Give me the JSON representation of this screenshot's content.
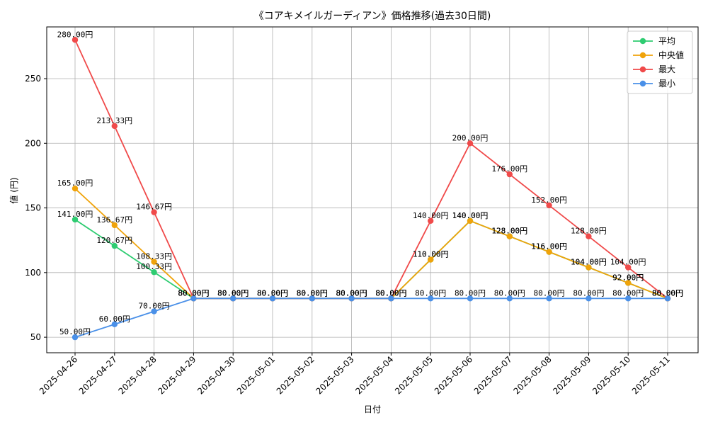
{
  "chart_data": {
    "type": "line",
    "title": "《コアキメイルガーディアン》価格推移(過去30日間)",
    "xlabel": "日付",
    "ylabel": "値 (円)",
    "categories": [
      "2025-04-26",
      "2025-04-27",
      "2025-04-28",
      "2025-04-29",
      "2025-04-30",
      "2025-05-01",
      "2025-05-02",
      "2025-05-03",
      "2025-05-04",
      "2025-05-05",
      "2025-05-06",
      "2025-05-07",
      "2025-05-08",
      "2025-05-09",
      "2025-05-10",
      "2025-05-11"
    ],
    "ylim": [
      38,
      290
    ],
    "yticks": [
      50,
      100,
      150,
      200,
      250
    ],
    "grid": true,
    "legend_position": "top-right",
    "series": [
      {
        "name": "平均",
        "color": "#2ecc71",
        "values": [
          141,
          120.67,
          100.33,
          80,
          80,
          80,
          80,
          80,
          80,
          110,
          140,
          128,
          116,
          104,
          92,
          80
        ]
      },
      {
        "name": "中央値",
        "color": "#f0a30a",
        "values": [
          165,
          136.67,
          108.33,
          80,
          80,
          80,
          80,
          80,
          80,
          110,
          140,
          128,
          116,
          104,
          92,
          80
        ]
      },
      {
        "name": "最大",
        "color": "#f04a4a",
        "values": [
          280,
          213.33,
          146.67,
          80,
          80,
          80,
          80,
          80,
          80,
          140,
          200,
          176,
          152,
          128,
          104,
          80
        ]
      },
      {
        "name": "最小",
        "color": "#4a90e8",
        "values": [
          50,
          60,
          70,
          80,
          80,
          80,
          80,
          80,
          80,
          80,
          80,
          80,
          80,
          80,
          80,
          80
        ]
      }
    ],
    "data_labels": {
      "suffix": "円",
      "decimals": 2
    }
  }
}
